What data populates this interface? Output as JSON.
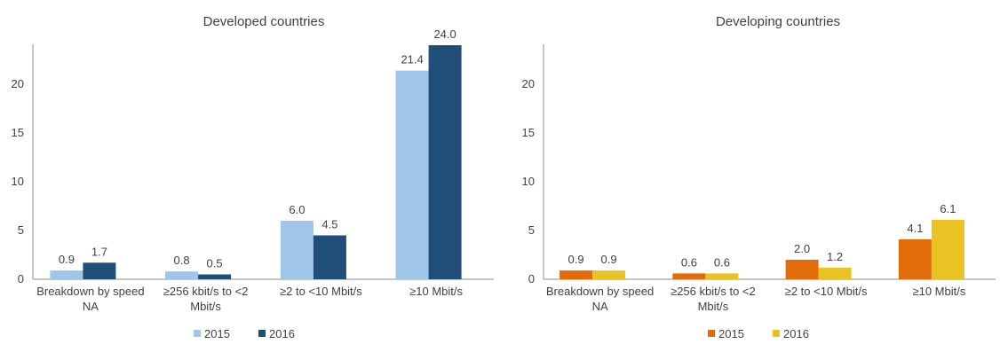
{
  "chart_data": [
    {
      "type": "bar",
      "title": "Developed countries",
      "categories": [
        [
          "Breakdown by speed",
          "NA"
        ],
        [
          "≥256 kbit/s to <2",
          "Mbit/s"
        ],
        [
          "≥2 to <10 Mbit/s"
        ],
        [
          "≥10 Mbit/s"
        ]
      ],
      "series": [
        {
          "name": "2015",
          "color": "#9fc5e8",
          "values": [
            0.9,
            0.8,
            6.0,
            21.4
          ],
          "labels": [
            "0.9",
            "0.8",
            "6.0",
            "21.4"
          ]
        },
        {
          "name": "2016",
          "color": "#1f4e79",
          "values": [
            1.7,
            0.5,
            4.5,
            24.0
          ],
          "labels": [
            "1.7",
            "0.5",
            "4.5",
            "24.0"
          ]
        }
      ],
      "yticks": [
        "0",
        "5",
        "10",
        "15",
        "20"
      ],
      "ylim": [
        0,
        24
      ],
      "grid": false,
      "legend": "bottom"
    },
    {
      "type": "bar",
      "title": "Developing countries",
      "categories": [
        [
          "Breakdown by speed",
          "NA"
        ],
        [
          "≥256 kbit/s to <2",
          "Mbit/s"
        ],
        [
          "≥2 to <10 Mbit/s"
        ],
        [
          "≥10 Mbit/s"
        ]
      ],
      "series": [
        {
          "name": "2015",
          "color": "#e36c0a",
          "values": [
            0.9,
            0.6,
            2.0,
            4.1
          ],
          "labels": [
            "0.9",
            "0.6",
            "2.0",
            "4.1"
          ]
        },
        {
          "name": "2016",
          "color": "#e8c323",
          "values": [
            0.9,
            0.6,
            1.2,
            6.1
          ],
          "labels": [
            "0.9",
            "0.6",
            "1.2",
            "6.1"
          ]
        }
      ],
      "yticks": [
        "0",
        "5",
        "10",
        "15",
        "20"
      ],
      "ylim": [
        0,
        24
      ],
      "grid": false,
      "legend": "bottom"
    }
  ]
}
